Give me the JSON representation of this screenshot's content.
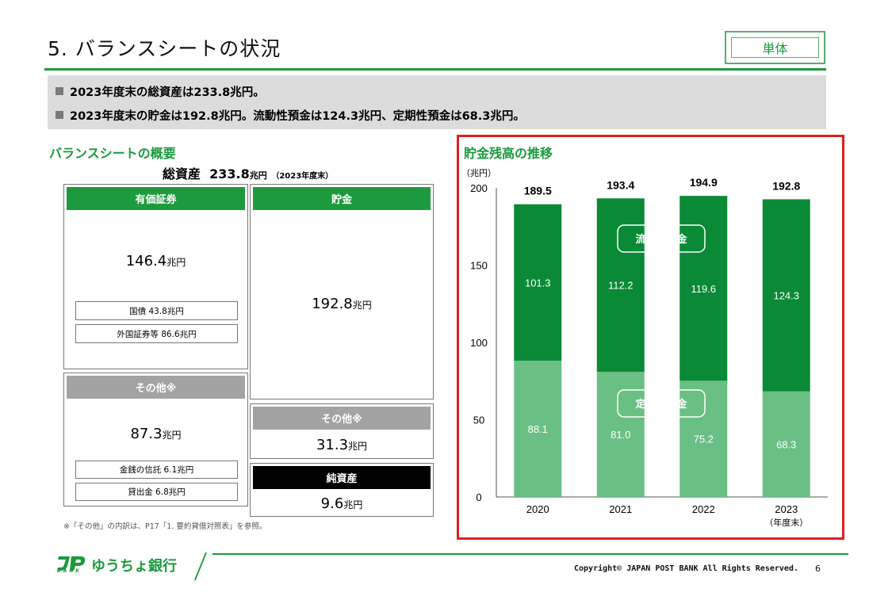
{
  "header": {
    "title": "5. バランスシートの状況",
    "scope_badge": "単体"
  },
  "summary": {
    "line1": "2023年度末の総資産は233.8兆円。",
    "line2": "2023年度末の貯金は192.8兆円。流動性預金は124.3兆円、定期性預金は68.3兆円。"
  },
  "balance_sheet": {
    "section_title": "バランスシートの概要",
    "total_label": "総資産",
    "total_value": "233.8",
    "total_unit": "兆円",
    "total_note": "（2023年度末）",
    "securities": {
      "label": "有価証券",
      "value": "146.4",
      "unit": "兆円",
      "sub1": "国債 43.8兆円",
      "sub2": "外国証券等 86.6兆円"
    },
    "other_assets": {
      "label": "その他※",
      "value": "87.3",
      "unit": "兆円",
      "sub1": "金銭の信託 6.1兆円",
      "sub2": "貸出金 6.8兆円"
    },
    "deposits": {
      "label": "貯金",
      "value": "192.8",
      "unit": "兆円"
    },
    "other_liabilities": {
      "label": "その他※",
      "value": "31.3",
      "unit": "兆円"
    },
    "net_assets": {
      "label": "純資産",
      "value": "9.6",
      "unit": "兆円"
    },
    "footnote": "※「その他」の内訳は、P17「1. 要約貸借対照表」を参照。"
  },
  "chart_section_title": "貯金残高の推移",
  "chart_data": {
    "type": "bar",
    "stacked": true,
    "ylabel": "（兆円）",
    "ylim": [
      0,
      200
    ],
    "yticks": [
      0,
      50,
      100,
      150,
      200
    ],
    "categories": [
      "2020",
      "2021",
      "2022",
      "2023"
    ],
    "last_category_note": "（年度末）",
    "totals": [
      189.5,
      193.4,
      194.9,
      192.8
    ],
    "series": [
      {
        "name": "定期性預金",
        "values": [
          88.1,
          81.0,
          75.2,
          68.3
        ],
        "color": "#6abf85",
        "value_labels": [
          "88.1",
          "81.0",
          "75.2",
          "68.3"
        ]
      },
      {
        "name": "流動性預金",
        "values": [
          101.3,
          112.2,
          119.6,
          124.3
        ],
        "color": "#0a8a36",
        "value_labels": [
          "101.3",
          "112.2",
          "119.6",
          "124.3"
        ]
      }
    ],
    "total_labels": [
      "189.5",
      "193.4",
      "194.9",
      "192.8"
    ],
    "frame_color": "#e02020"
  },
  "footer": {
    "logo_text": "ゆうちょ銀行",
    "logo_sub": "BANK",
    "copyright": "Copyright© JAPAN POST BANK All Rights Reserved.",
    "page_number": "6"
  }
}
